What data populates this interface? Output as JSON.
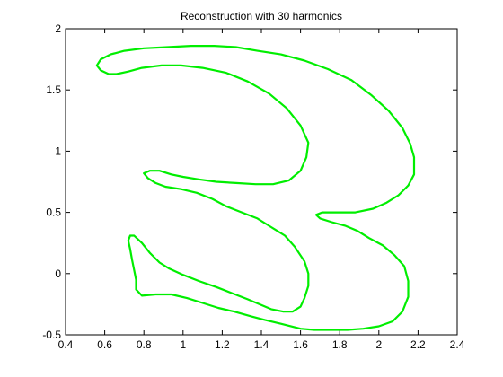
{
  "chart_data": {
    "type": "line",
    "title": "Reconstruction with 30 harmonics",
    "xlabel": "",
    "ylabel": "",
    "xlim": [
      0.4,
      2.4
    ],
    "ylim": [
      -0.5,
      2
    ],
    "x_ticks": [
      "0.4",
      "0.6",
      "0.8",
      "1",
      "1.2",
      "1.4",
      "1.6",
      "1.8",
      "2",
      "2.2",
      "2.4"
    ],
    "y_ticks": [
      "-0.5",
      "0",
      "0.5",
      "1",
      "1.5",
      "2"
    ],
    "grid": false,
    "line_color": "#00ee00",
    "series": [
      {
        "closed": true,
        "points": [
          [
            0.75,
            0.31
          ],
          [
            0.79,
            0.25
          ],
          [
            0.83,
            0.17
          ],
          [
            0.88,
            0.09
          ],
          [
            0.93,
            0.04
          ],
          [
            1.0,
            -0.01
          ],
          [
            1.08,
            -0.06
          ],
          [
            1.17,
            -0.11
          ],
          [
            1.25,
            -0.16
          ],
          [
            1.33,
            -0.21
          ],
          [
            1.39,
            -0.25
          ],
          [
            1.45,
            -0.29
          ],
          [
            1.51,
            -0.31
          ],
          [
            1.56,
            -0.31
          ],
          [
            1.6,
            -0.27
          ],
          [
            1.62,
            -0.2
          ],
          [
            1.64,
            -0.1
          ],
          [
            1.64,
            0.0
          ],
          [
            1.62,
            0.1
          ],
          [
            1.57,
            0.22
          ],
          [
            1.52,
            0.31
          ],
          [
            1.45,
            0.38
          ],
          [
            1.38,
            0.45
          ],
          [
            1.3,
            0.5
          ],
          [
            1.22,
            0.55
          ],
          [
            1.15,
            0.61
          ],
          [
            1.07,
            0.66
          ],
          [
            0.99,
            0.69
          ],
          [
            0.91,
            0.71
          ],
          [
            0.86,
            0.74
          ],
          [
            0.82,
            0.78
          ],
          [
            0.8,
            0.82
          ],
          [
            0.83,
            0.84
          ],
          [
            0.88,
            0.84
          ],
          [
            0.94,
            0.81
          ],
          [
            1.0,
            0.79
          ],
          [
            1.08,
            0.77
          ],
          [
            1.17,
            0.75
          ],
          [
            1.27,
            0.74
          ],
          [
            1.37,
            0.73
          ],
          [
            1.46,
            0.73
          ],
          [
            1.54,
            0.76
          ],
          [
            1.6,
            0.84
          ],
          [
            1.63,
            0.95
          ],
          [
            1.64,
            1.07
          ],
          [
            1.6,
            1.21
          ],
          [
            1.53,
            1.35
          ],
          [
            1.44,
            1.47
          ],
          [
            1.33,
            1.57
          ],
          [
            1.22,
            1.64
          ],
          [
            1.1,
            1.68
          ],
          [
            0.99,
            1.7
          ],
          [
            0.89,
            1.7
          ],
          [
            0.79,
            1.68
          ],
          [
            0.72,
            1.65
          ],
          [
            0.66,
            1.63
          ],
          [
            0.62,
            1.63
          ],
          [
            0.58,
            1.66
          ],
          [
            0.56,
            1.7
          ],
          [
            0.58,
            1.75
          ],
          [
            0.63,
            1.79
          ],
          [
            0.7,
            1.82
          ],
          [
            0.8,
            1.84
          ],
          [
            0.92,
            1.85
          ],
          [
            1.04,
            1.86
          ],
          [
            1.16,
            1.86
          ],
          [
            1.27,
            1.85
          ],
          [
            1.38,
            1.82
          ],
          [
            1.5,
            1.79
          ],
          [
            1.62,
            1.74
          ],
          [
            1.74,
            1.67
          ],
          [
            1.86,
            1.58
          ],
          [
            1.96,
            1.46
          ],
          [
            2.05,
            1.33
          ],
          [
            2.12,
            1.19
          ],
          [
            2.16,
            1.06
          ],
          [
            2.18,
            0.95
          ],
          [
            2.18,
            0.81
          ],
          [
            2.15,
            0.72
          ],
          [
            2.1,
            0.64
          ],
          [
            2.04,
            0.58
          ],
          [
            1.97,
            0.53
          ],
          [
            1.88,
            0.5
          ],
          [
            1.79,
            0.5
          ],
          [
            1.71,
            0.5
          ],
          [
            1.68,
            0.48
          ],
          [
            1.7,
            0.45
          ],
          [
            1.76,
            0.42
          ],
          [
            1.83,
            0.39
          ],
          [
            1.89,
            0.35
          ],
          [
            1.95,
            0.29
          ],
          [
            2.02,
            0.23
          ],
          [
            2.08,
            0.15
          ],
          [
            2.13,
            0.06
          ],
          [
            2.15,
            -0.06
          ],
          [
            2.15,
            -0.19
          ],
          [
            2.12,
            -0.31
          ],
          [
            2.07,
            -0.39
          ],
          [
            2.0,
            -0.43
          ],
          [
            1.92,
            -0.45
          ],
          [
            1.84,
            -0.46
          ],
          [
            1.75,
            -0.46
          ],
          [
            1.67,
            -0.46
          ],
          [
            1.6,
            -0.45
          ],
          [
            1.5,
            -0.41
          ],
          [
            1.42,
            -0.38
          ],
          [
            1.35,
            -0.35
          ],
          [
            1.26,
            -0.31
          ],
          [
            1.18,
            -0.28
          ],
          [
            1.1,
            -0.24
          ],
          [
            1.02,
            -0.2
          ],
          [
            0.94,
            -0.17
          ],
          [
            0.86,
            -0.17
          ],
          [
            0.79,
            -0.18
          ],
          [
            0.76,
            -0.13
          ],
          [
            0.76,
            -0.05
          ],
          [
            0.75,
            0.03
          ],
          [
            0.74,
            0.11
          ],
          [
            0.73,
            0.2
          ],
          [
            0.72,
            0.27
          ],
          [
            0.73,
            0.31
          ]
        ]
      }
    ]
  }
}
